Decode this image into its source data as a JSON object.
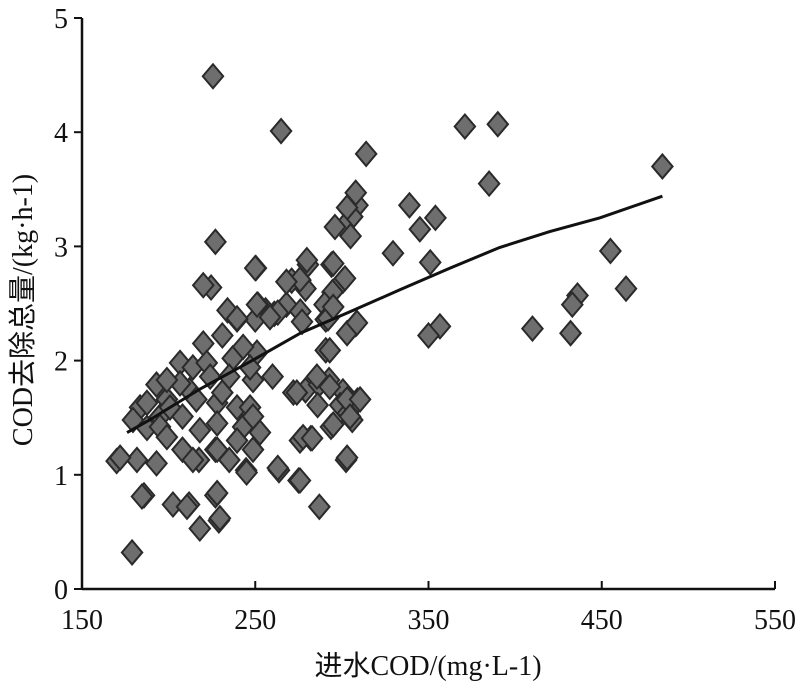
{
  "chart_data": {
    "type": "scatter",
    "title": "",
    "xlabel": "进水COD/(mg·L-1)",
    "ylabel": "COD去除总量/(kg·h-1)",
    "xlim": [
      150,
      550
    ],
    "ylim": [
      0,
      5
    ],
    "x_ticks": [
      "150",
      "250",
      "350",
      "450",
      "550"
    ],
    "y_ticks": [
      "0",
      "1",
      "2",
      "3",
      "4",
      "5"
    ],
    "grid": false,
    "legend": "none",
    "marker": "diamond",
    "marker_color": "#6e6e6e",
    "line_color": "#111111",
    "points": [
      [
        225.6,
        4.49
      ],
      [
        264.9,
        4.01
      ],
      [
        371,
        4.05
      ],
      [
        390,
        4.07
      ],
      [
        485,
        3.7
      ],
      [
        314,
        3.81
      ],
      [
        385,
        3.55
      ],
      [
        339,
        3.36
      ],
      [
        345,
        3.15
      ],
      [
        354,
        3.25
      ],
      [
        329.5,
        2.94
      ],
      [
        455,
        2.96
      ],
      [
        351,
        2.86
      ],
      [
        464,
        2.63
      ],
      [
        436,
        2.57
      ],
      [
        433,
        2.49
      ],
      [
        410,
        2.28
      ],
      [
        432,
        2.24
      ],
      [
        356.6,
        2.3
      ],
      [
        350,
        2.22
      ],
      [
        309,
        3.36
      ],
      [
        306,
        3.26
      ],
      [
        303,
        3.34
      ],
      [
        308,
        3.47
      ],
      [
        301,
        3.17
      ],
      [
        305,
        3.09
      ],
      [
        296,
        3.17
      ],
      [
        280.4,
        2.84
      ],
      [
        294,
        2.84
      ],
      [
        276,
        2.7
      ],
      [
        271,
        2.7
      ],
      [
        300.6,
        2.7
      ],
      [
        279,
        2.63
      ],
      [
        294.6,
        2.6
      ],
      [
        268,
        2.49
      ],
      [
        261,
        2.41
      ],
      [
        276,
        2.43
      ],
      [
        250.4,
        2.81
      ],
      [
        256,
        2.44
      ],
      [
        251.5,
        2.49
      ],
      [
        250,
        2.36
      ],
      [
        227,
        3.04
      ],
      [
        224.5,
        2.64
      ],
      [
        234,
        2.44
      ],
      [
        239.5,
        2.36
      ],
      [
        308,
        2.32
      ],
      [
        303,
        2.24
      ],
      [
        290,
        2.49
      ],
      [
        290.7,
        2.36
      ],
      [
        290.7,
        2.09
      ],
      [
        279,
        1.74
      ],
      [
        286.8,
        1.79
      ],
      [
        292.6,
        1.83
      ],
      [
        300.6,
        1.73
      ],
      [
        272,
        1.72
      ],
      [
        286,
        1.61
      ],
      [
        299,
        1.61
      ],
      [
        309,
        1.65
      ],
      [
        303.5,
        1.54
      ],
      [
        306,
        1.48
      ],
      [
        293.7,
        1.42
      ],
      [
        275.8,
        1.3
      ],
      [
        282,
        1.32
      ],
      [
        275,
        0.95
      ],
      [
        263.7,
        1.04
      ],
      [
        244.7,
        1.04
      ],
      [
        302.4,
        1.13
      ],
      [
        287,
        0.72
      ],
      [
        178.9,
        0.32
      ],
      [
        170,
        1.12
      ],
      [
        185.8,
        0.82
      ],
      [
        202.5,
        0.74
      ],
      [
        211.8,
        0.74
      ],
      [
        218,
        0.53
      ],
      [
        227,
        0.82
      ],
      [
        229,
        0.6
      ],
      [
        217.5,
        1.13
      ],
      [
        235,
        1.13
      ],
      [
        227,
        1.22
      ],
      [
        183.5,
        1.59
      ],
      [
        179.4,
        1.48
      ],
      [
        187.5,
        1.41
      ],
      [
        195,
        1.51
      ],
      [
        199,
        1.66
      ],
      [
        193,
        1.79
      ],
      [
        206.6,
        1.98
      ],
      [
        220,
        2.15
      ],
      [
        231,
        2.22
      ],
      [
        239.5,
        2.37
      ],
      [
        214,
        1.94
      ],
      [
        222,
        1.98
      ],
      [
        237,
        2.02
      ],
      [
        251,
        2.07
      ],
      [
        243,
        2.12
      ],
      [
        260,
        1.86
      ],
      [
        248.7,
        1.83
      ],
      [
        212,
        1.74
      ],
      [
        228,
        1.63
      ],
      [
        239.5,
        1.59
      ],
      [
        247,
        1.59
      ],
      [
        200.8,
        1.59
      ],
      [
        195,
        1.42
      ],
      [
        208,
        1.22
      ],
      [
        199,
        1.33
      ],
      [
        193,
        1.1
      ],
      [
        181.7,
        1.13
      ],
      [
        172,
        1.15
      ],
      [
        228,
        1.22
      ],
      [
        214,
        1.13
      ],
      [
        243,
        1.42
      ],
      [
        248.7,
        1.51
      ],
      [
        252.7,
        1.37
      ],
      [
        248.7,
        1.22
      ],
      [
        245,
        1.02
      ],
      [
        228,
        0.84
      ],
      [
        229.6,
        0.62
      ],
      [
        210.6,
        0.72
      ],
      [
        184.6,
        0.81
      ],
      [
        274,
        1.72
      ],
      [
        285.6,
        1.86
      ],
      [
        293,
        1.77
      ],
      [
        303,
        1.66
      ],
      [
        310.5,
        1.66
      ],
      [
        304.7,
        1.51
      ],
      [
        295,
        1.44
      ],
      [
        277.6,
        1.33
      ],
      [
        282.8,
        1.32
      ],
      [
        303,
        1.15
      ],
      [
        263,
        1.06
      ],
      [
        275.8,
        0.95
      ],
      [
        293,
        2.09
      ],
      [
        308.7,
        2.33
      ],
      [
        292,
        2.37
      ],
      [
        295,
        2.47
      ],
      [
        277,
        2.34
      ],
      [
        263,
        2.42
      ],
      [
        258.5,
        2.38
      ],
      [
        251,
        2.49
      ],
      [
        220,
        2.66
      ],
      [
        250,
        2.81
      ],
      [
        279.8,
        2.88
      ],
      [
        275.8,
        2.71
      ],
      [
        268,
        2.69
      ],
      [
        295,
        2.85
      ],
      [
        301.8,
        2.72
      ],
      [
        216,
        1.66
      ],
      [
        231,
        1.72
      ],
      [
        224,
        1.86
      ],
      [
        235,
        1.86
      ],
      [
        247,
        1.94
      ],
      [
        228,
        1.45
      ],
      [
        218,
        1.39
      ],
      [
        239.5,
        1.3
      ],
      [
        206.6,
        1.8
      ],
      [
        199,
        1.83
      ],
      [
        187.5,
        1.63
      ],
      [
        208,
        1.51
      ]
    ],
    "trend_line": [
      [
        176,
        1.37
      ],
      [
        189,
        1.48
      ],
      [
        218,
        1.75
      ],
      [
        247,
        1.99
      ],
      [
        276,
        2.24
      ],
      [
        305,
        2.43
      ],
      [
        333.5,
        2.62
      ],
      [
        362.4,
        2.81
      ],
      [
        391,
        2.99
      ],
      [
        420,
        3.13
      ],
      [
        449,
        3.25
      ],
      [
        485,
        3.44
      ]
    ]
  }
}
